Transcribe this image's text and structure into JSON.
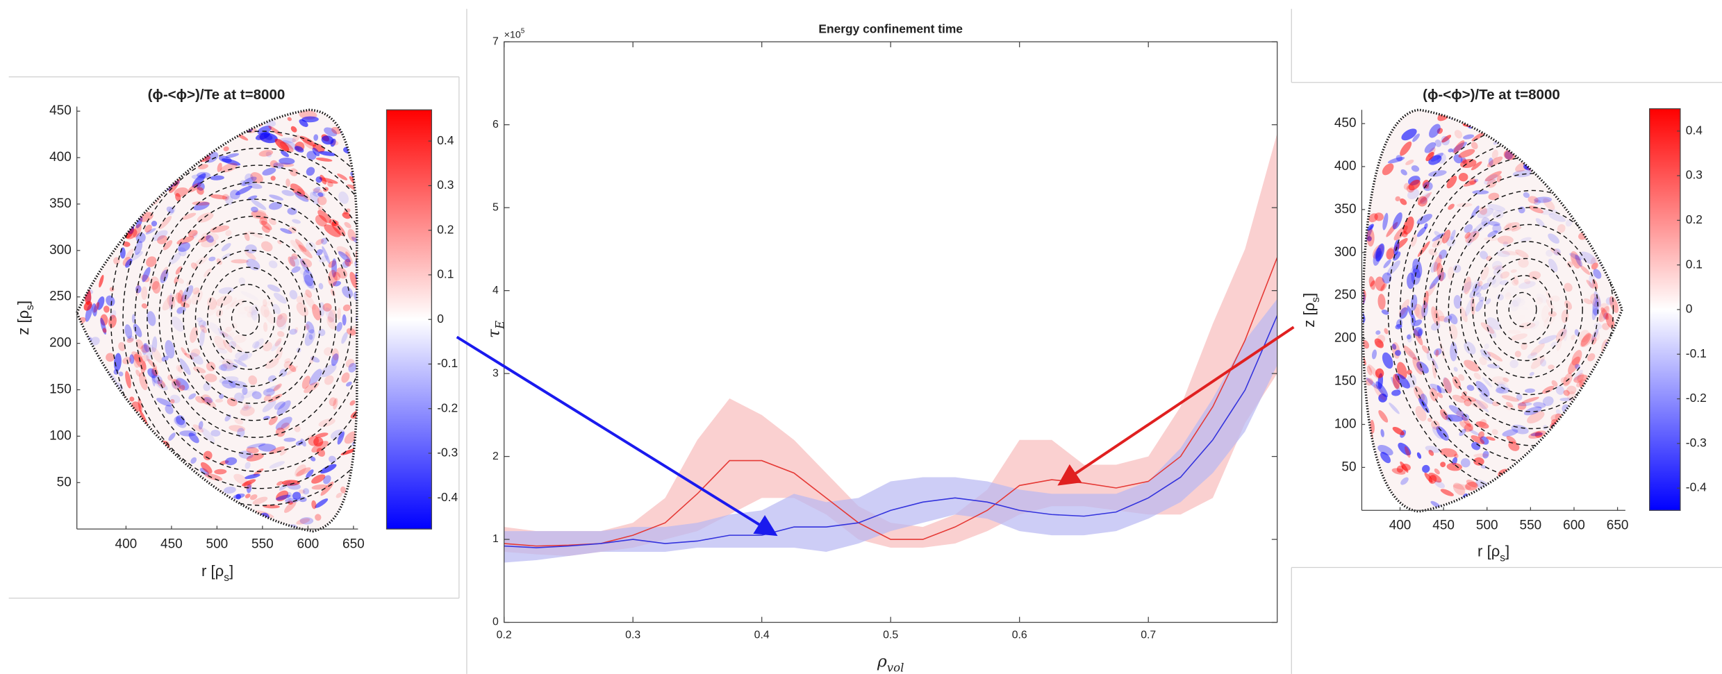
{
  "chart_data": [
    {
      "type": "heatmap",
      "title": "(ϕ-<ϕ>)/Te at t=8000",
      "x_label": [
        "r [ρ",
        "s",
        "]"
      ],
      "y_label": [
        "z [ρ",
        "s",
        "]"
      ],
      "xlim": [
        346,
        655
      ],
      "xticks": [
        400,
        450,
        500,
        550,
        600,
        650
      ],
      "ylim": [
        0,
        455
      ],
      "yticks": [
        50,
        100,
        150,
        200,
        250,
        300,
        350,
        400,
        450
      ],
      "clim": [
        -0.47,
        0.47
      ],
      "cticks": [
        -0.4,
        -0.3,
        -0.2,
        -0.1,
        0,
        0.1,
        0.2,
        0.3,
        0.4
      ],
      "colormap": [
        "#0000ff",
        "#ffffff",
        "#ff0000"
      ]
    },
    {
      "type": "line",
      "title": "Energy confinement time",
      "x_label": [
        "ρ",
        "vol"
      ],
      "y_label": [
        "τ",
        "E"
      ],
      "y_exponent": [
        "×10",
        "5"
      ],
      "xlim": [
        0.2,
        0.8
      ],
      "xticks": [
        0.2,
        0.3,
        0.4,
        0.5,
        0.6,
        0.7
      ],
      "ylim": [
        0,
        700000
      ],
      "yticks": [
        {
          "value": 0,
          "label": "0"
        },
        {
          "value": 100000,
          "label": "1"
        },
        {
          "value": 200000,
          "label": "2"
        },
        {
          "value": 300000,
          "label": "3"
        },
        {
          "value": 400000,
          "label": "4"
        },
        {
          "value": 500000,
          "label": "5"
        },
        {
          "value": 600000,
          "label": "6"
        },
        {
          "value": 700000,
          "label": "7"
        }
      ],
      "grid": false,
      "x": [
        0.2,
        0.225,
        0.25,
        0.275,
        0.3,
        0.325,
        0.35,
        0.375,
        0.4,
        0.425,
        0.45,
        0.475,
        0.5,
        0.525,
        0.55,
        0.575,
        0.6,
        0.625,
        0.65,
        0.675,
        0.7,
        0.725,
        0.75,
        0.775,
        0.8
      ],
      "series": [
        {
          "color": "#e53935",
          "band_color": "#f8bcbc",
          "values": [
            95000,
            92000,
            93000,
            95000,
            105000,
            120000,
            155000,
            195000,
            195000,
            180000,
            150000,
            120000,
            100000,
            100000,
            115000,
            135000,
            165000,
            172000,
            168000,
            162000,
            170000,
            200000,
            260000,
            340000,
            440000
          ],
          "upper": [
            115000,
            110000,
            110000,
            110000,
            120000,
            150000,
            220000,
            270000,
            250000,
            220000,
            180000,
            140000,
            120000,
            115000,
            130000,
            160000,
            220000,
            220000,
            190000,
            190000,
            200000,
            260000,
            360000,
            450000,
            590000
          ],
          "lower": [
            85000,
            82000,
            80000,
            85000,
            90000,
            100000,
            110000,
            130000,
            150000,
            150000,
            130000,
            100000,
            90000,
            90000,
            95000,
            110000,
            130000,
            140000,
            140000,
            135000,
            130000,
            130000,
            150000,
            240000,
            300000
          ]
        },
        {
          "color": "#3333dd",
          "band_color": "#b8b8f2",
          "values": [
            92000,
            90000,
            92000,
            95000,
            100000,
            95000,
            98000,
            105000,
            105000,
            115000,
            115000,
            120000,
            135000,
            145000,
            150000,
            145000,
            135000,
            130000,
            128000,
            133000,
            150000,
            175000,
            220000,
            280000,
            370000
          ],
          "upper": [
            110000,
            110000,
            110000,
            110000,
            115000,
            115000,
            120000,
            130000,
            135000,
            155000,
            145000,
            150000,
            170000,
            175000,
            175000,
            170000,
            160000,
            155000,
            155000,
            155000,
            170000,
            210000,
            270000,
            340000,
            390000
          ],
          "lower": [
            72000,
            75000,
            80000,
            85000,
            85000,
            85000,
            90000,
            90000,
            90000,
            90000,
            85000,
            95000,
            110000,
            120000,
            130000,
            125000,
            110000,
            105000,
            105000,
            110000,
            125000,
            145000,
            180000,
            230000,
            310000
          ]
        }
      ]
    },
    {
      "type": "heatmap",
      "title": "(ϕ-<ϕ>)/Te at t=8000",
      "x_label": [
        "r [ρ",
        "s",
        "]"
      ],
      "y_label": [
        "z [ρ",
        "s",
        "]"
      ],
      "xlim": [
        356,
        659
      ],
      "xticks": [
        400,
        450,
        500,
        550,
        600,
        650
      ],
      "ylim": [
        0,
        466
      ],
      "yticks": [
        50,
        100,
        150,
        200,
        250,
        300,
        350,
        400,
        450
      ],
      "clim": [
        -0.45,
        0.45
      ],
      "cticks": [
        -0.4,
        -0.3,
        -0.2,
        -0.1,
        0,
        0.1,
        0.2,
        0.3,
        0.4
      ],
      "colormap": [
        "#0000ff",
        "#ffffff",
        "#ff0000"
      ]
    }
  ]
}
